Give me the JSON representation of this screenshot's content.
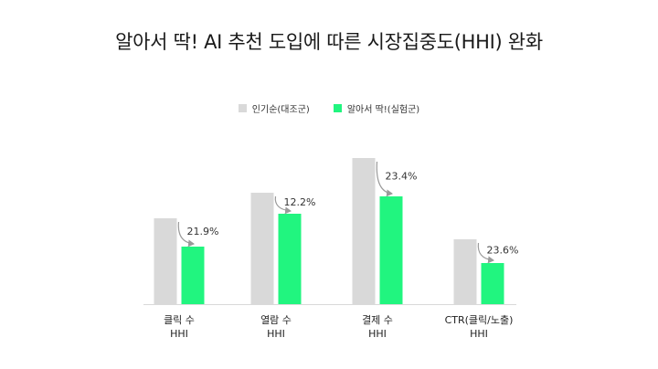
{
  "title": "알아서 딱! AI 추천 도입에 따른 시장집중도(HHI) 완화",
  "colors": {
    "control": "#d9d9d9",
    "treatment": "#21f57f",
    "arrow": "#9a9a9a",
    "axis": "#d9d9d9"
  },
  "chart_data": {
    "type": "bar",
    "title": "알아서 딱! AI 추천 도입에 따른 시장집중도(HHI) 완화",
    "legend_position": "top-center",
    "grid": false,
    "categories": [
      {
        "line1": "클릭 수",
        "line2": "HHI"
      },
      {
        "line1": "열람 수",
        "line2": "HHI"
      },
      {
        "line1": "결제 수",
        "line2": "HHI"
      },
      {
        "line1": "CTR(클릭/노출)",
        "line2": "HHI"
      }
    ],
    "series": [
      {
        "name": "인기순(대조군)",
        "values": [
          94,
          122,
          160,
          71
        ]
      },
      {
        "name": "알아서 딱!(실험군)",
        "values": [
          63,
          99,
          118,
          45
        ]
      }
    ],
    "annotations": [
      "21.9%",
      "12.2%",
      "23.4%",
      "23.6%"
    ],
    "ylim": [
      0,
      165
    ]
  }
}
